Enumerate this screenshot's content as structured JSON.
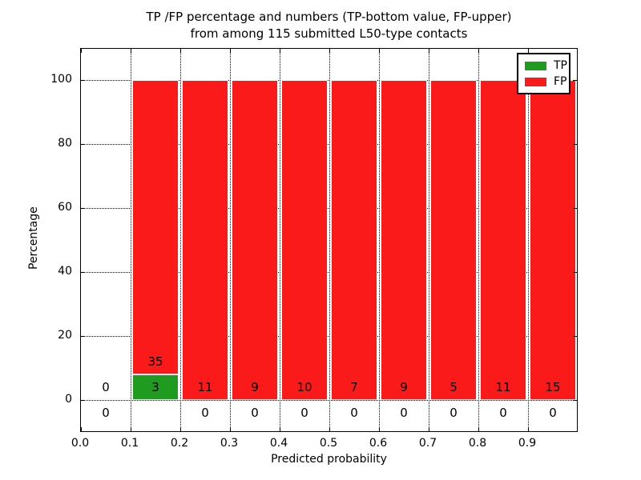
{
  "chart_data": {
    "type": "bar",
    "variant": "stacked-percentage-histogram",
    "title_line1": "TP /FP percentage and numbers (TP-bottom value, FP-upper)",
    "title_line2": "from among 115 submitted L50-type contacts",
    "xlabel": "Predicted probability",
    "ylabel": "Percentage",
    "xlim": [
      0.0,
      1.0
    ],
    "ylim": [
      -10,
      110
    ],
    "grid": "dotted",
    "bin_width": 0.1,
    "xticks": [
      {
        "v": 0.0,
        "label": "0.0"
      },
      {
        "v": 0.1,
        "label": "0.1"
      },
      {
        "v": 0.2,
        "label": "0.2"
      },
      {
        "v": 0.3,
        "label": "0.3"
      },
      {
        "v": 0.4,
        "label": "0.4"
      },
      {
        "v": 0.5,
        "label": "0.5"
      },
      {
        "v": 0.6,
        "label": "0.6"
      },
      {
        "v": 0.7,
        "label": "0.7"
      },
      {
        "v": 0.8,
        "label": "0.8"
      },
      {
        "v": 0.9,
        "label": "0.9"
      }
    ],
    "yticks": [
      {
        "v": 0,
        "label": "0"
      },
      {
        "v": 20,
        "label": "20"
      },
      {
        "v": 40,
        "label": "40"
      },
      {
        "v": 60,
        "label": "60"
      },
      {
        "v": 80,
        "label": "80"
      },
      {
        "v": 100,
        "label": "100"
      }
    ],
    "bins": [
      {
        "start": 0.0,
        "tp": 0,
        "fp": 0
      },
      {
        "start": 0.1,
        "tp": 3,
        "fp": 35
      },
      {
        "start": 0.2,
        "tp": 0,
        "fp": 11
      },
      {
        "start": 0.3,
        "tp": 0,
        "fp": 9
      },
      {
        "start": 0.4,
        "tp": 0,
        "fp": 10
      },
      {
        "start": 0.5,
        "tp": 0,
        "fp": 7
      },
      {
        "start": 0.6,
        "tp": 0,
        "fp": 9
      },
      {
        "start": 0.7,
        "tp": 0,
        "fp": 5
      },
      {
        "start": 0.8,
        "tp": 0,
        "fp": 11
      },
      {
        "start": 0.9,
        "tp": 0,
        "fp": 15
      }
    ],
    "bar_colors": {
      "tp": "#1f9b1f",
      "fp": "#fa1a1a"
    },
    "legend": {
      "position": "upper right",
      "items": [
        {
          "label": "TP",
          "color": "#1f9b1f"
        },
        {
          "label": "FP",
          "color": "#fa1a1a"
        }
      ]
    },
    "axis_color": "#000000",
    "background": "#ffffff"
  }
}
